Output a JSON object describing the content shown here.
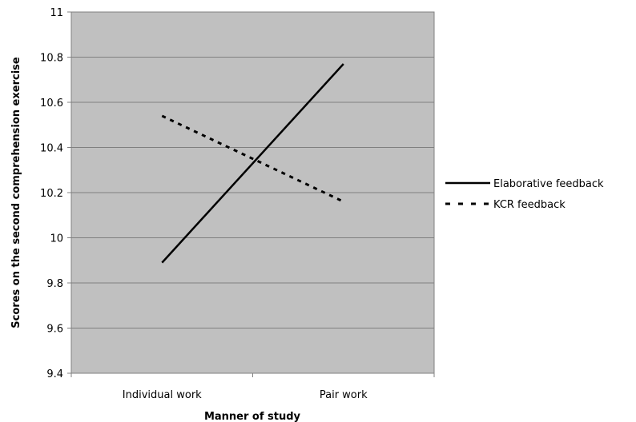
{
  "chart_data": {
    "type": "line",
    "title": "",
    "xlabel": "Manner of study",
    "ylabel": "Scores on the second comprehension exercise",
    "categories": [
      "Individual work",
      "Pair work"
    ],
    "ylim": [
      9.4,
      11
    ],
    "yticks": [
      9.4,
      9.6,
      9.8,
      10,
      10.2,
      10.4,
      10.6,
      10.8,
      11
    ],
    "ytick_labels": [
      "9.4",
      "9.6",
      "9.8",
      "10",
      "10.2",
      "10.4",
      "10.6",
      "10.8",
      "11"
    ],
    "grid": true,
    "plot_background": "#c0c0c0",
    "legend_position": "right",
    "series": [
      {
        "name": "Elaborative feedback",
        "values": [
          9.89,
          10.77
        ],
        "style": "solid",
        "color": "#000000"
      },
      {
        "name": "KCR feedback",
        "values": [
          10.54,
          10.16
        ],
        "style": "dashed",
        "color": "#000000"
      }
    ]
  }
}
